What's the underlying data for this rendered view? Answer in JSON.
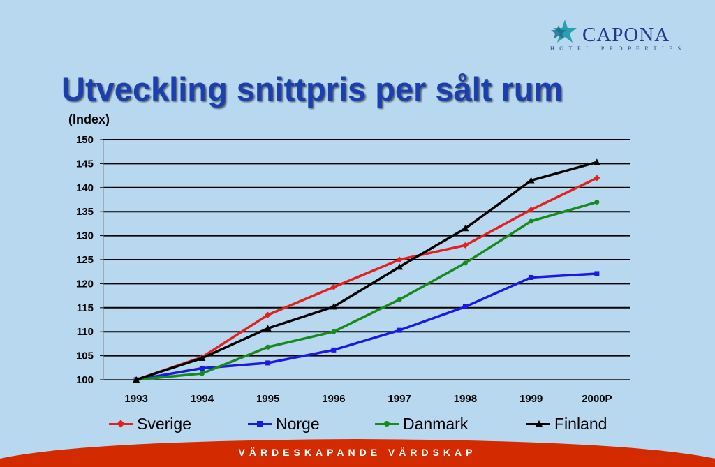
{
  "logo": {
    "name": "CAPONA",
    "subtitle": "HOTEL PROPERTIES",
    "icon": "star-logo-icon"
  },
  "title": "Utveckling snittpris per sålt rum",
  "footer": {
    "text": "VÄRDESKAPANDE VÄRDSKAP",
    "color": "#d42a00"
  },
  "chart_data": {
    "type": "line",
    "title": "Utveckling snittpris per sålt rum",
    "ylabel": "(Index)",
    "xlabel": "",
    "categories": [
      "1993",
      "1994",
      "1995",
      "1996",
      "1997",
      "1998",
      "1999",
      "2000P"
    ],
    "ylim": [
      100,
      150
    ],
    "yticks": [
      "100",
      "105",
      "110",
      "115",
      "120",
      "125",
      "130",
      "135",
      "140",
      "145",
      "150"
    ],
    "grid": true,
    "legend_position": "bottom",
    "series": [
      {
        "name": "Sverige",
        "color": "#e41f1f",
        "marker": "diamond",
        "values": [
          100,
          104.7,
          113.5,
          119.3,
          125.0,
          128.0,
          135.4,
          142.0
        ]
      },
      {
        "name": "Norge",
        "color": "#1a1ae0",
        "marker": "square",
        "values": [
          100,
          102.4,
          103.5,
          106.2,
          110.3,
          115.2,
          121.3,
          122.1
        ]
      },
      {
        "name": "Danmark",
        "color": "#178a1e",
        "marker": "circle",
        "values": [
          100,
          101.3,
          106.8,
          110.0,
          116.7,
          124.3,
          133.0,
          137.0
        ]
      },
      {
        "name": "Finland",
        "color": "#000000",
        "marker": "triangle",
        "values": [
          100,
          104.5,
          110.7,
          115.2,
          123.5,
          131.5,
          141.5,
          145.3
        ]
      }
    ]
  }
}
